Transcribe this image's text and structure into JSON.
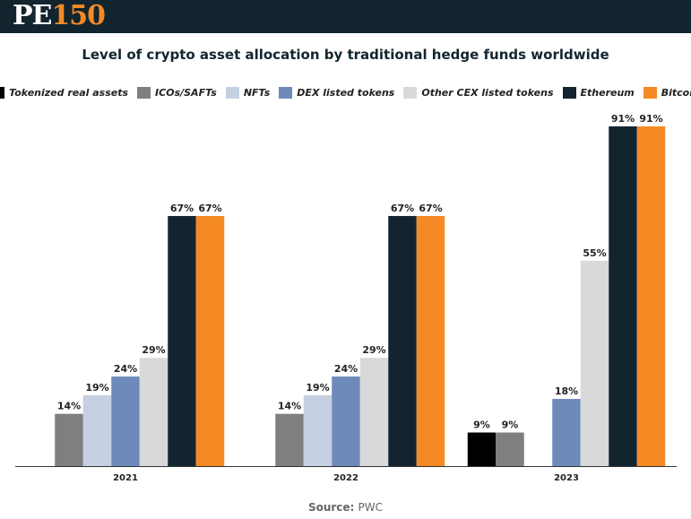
{
  "header": {
    "logo_pe": "PE",
    "logo_num": "150"
  },
  "footer": {
    "source_label": "Source:",
    "source_value": "PWC"
  },
  "colors": {
    "topbar": "#12252f",
    "brand_accent": "#f58a25"
  },
  "chart_data": {
    "type": "bar",
    "title": "Level of crypto asset allocation by traditional hedge funds worldwide",
    "xlabel": "",
    "ylabel": "",
    "ylim": [
      0,
      100
    ],
    "grid": false,
    "legend_position": "top",
    "categories": [
      "2021",
      "2022",
      "2023"
    ],
    "series": [
      {
        "name": "Tokenized real assets",
        "color": "#000000",
        "values": [
          null,
          null,
          9
        ],
        "labels": [
          "",
          "",
          "9%"
        ]
      },
      {
        "name": "ICOs/SAFTs",
        "color": "#7f7f7f",
        "values": [
          14,
          14,
          9
        ],
        "labels": [
          "14%",
          "14%",
          "9%"
        ]
      },
      {
        "name": "NFTs",
        "color": "#c5d0e3",
        "values": [
          19,
          19,
          null
        ],
        "labels": [
          "19%",
          "19%",
          ""
        ]
      },
      {
        "name": "DEX listed tokens",
        "color": "#6d8aba",
        "values": [
          24,
          24,
          18
        ],
        "labels": [
          "24%",
          "24%",
          "18%"
        ]
      },
      {
        "name": "Other CEX listed tokens",
        "color": "#d9d9d9",
        "values": [
          29,
          29,
          55
        ],
        "labels": [
          "29%",
          "29%",
          "55%"
        ]
      },
      {
        "name": "Ethereum",
        "color": "#12252f",
        "values": [
          67,
          67,
          91
        ],
        "labels": [
          "67%",
          "67%",
          "91%"
        ]
      },
      {
        "name": "Bitcoin",
        "color": "#f58a25",
        "values": [
          67,
          67,
          91
        ],
        "labels": [
          "67%",
          "67%",
          "91%"
        ]
      }
    ]
  }
}
